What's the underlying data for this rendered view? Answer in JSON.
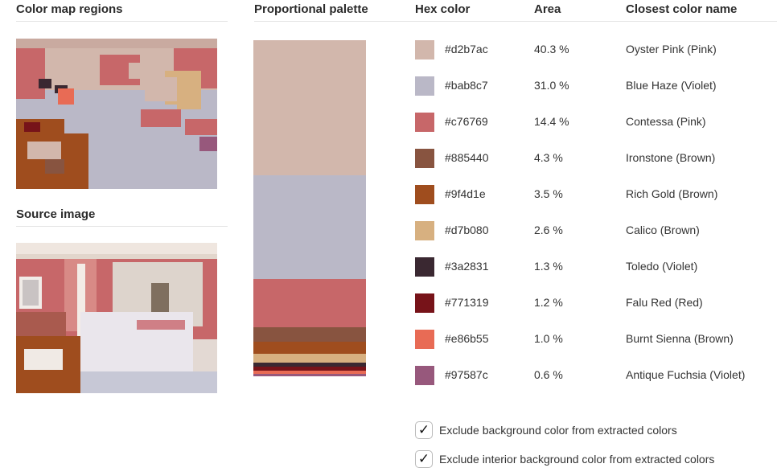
{
  "headings": {
    "color_map": "Color map regions",
    "source": "Source image",
    "palette": "Proportional palette",
    "hex": "Hex color",
    "area": "Area",
    "name": "Closest color name"
  },
  "colors": [
    {
      "hex": "#d2b7ac",
      "area": "40.3 %",
      "share": 40.3,
      "name": "Oyster Pink (Pink)"
    },
    {
      "hex": "#bab8c7",
      "area": "31.0 %",
      "share": 31.0,
      "name": "Blue Haze (Violet)"
    },
    {
      "hex": "#c76769",
      "area": "14.4 %",
      "share": 14.4,
      "name": "Contessa (Pink)"
    },
    {
      "hex": "#885440",
      "area": "4.3 %",
      "share": 4.3,
      "name": "Ironstone (Brown)"
    },
    {
      "hex": "#9f4d1e",
      "area": "3.5 %",
      "share": 3.5,
      "name": "Rich Gold (Brown)"
    },
    {
      "hex": "#d7b080",
      "area": "2.6 %",
      "share": 2.6,
      "name": "Calico (Brown)"
    },
    {
      "hex": "#3a2831",
      "area": "1.3 %",
      "share": 1.3,
      "name": "Toledo (Violet)"
    },
    {
      "hex": "#771319",
      "area": "1.2 %",
      "share": 1.2,
      "name": "Falu Red (Red)"
    },
    {
      "hex": "#e86b55",
      "area": "1.0 %",
      "share": 1.0,
      "name": "Burnt Sienna (Brown)"
    },
    {
      "hex": "#97587c",
      "area": "0.6 %",
      "share": 0.6,
      "name": "Antique Fuchsia (Violet)"
    }
  ],
  "options": [
    {
      "label": "Exclude background color from extracted colors",
      "checked": true,
      "mark": "✓"
    },
    {
      "label": "Exclude interior background color from extracted colors",
      "checked": true,
      "mark": "✓"
    }
  ]
}
